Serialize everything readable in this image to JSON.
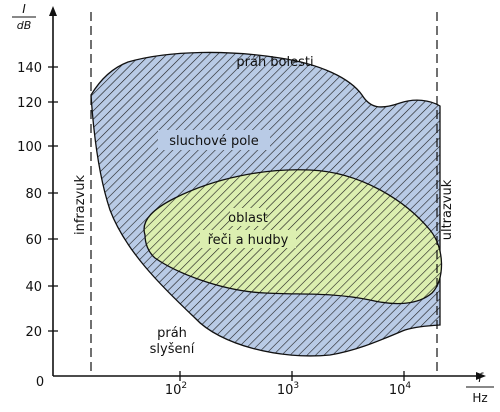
{
  "colors": {
    "auditory_field_fill": "#b9cbe6",
    "speech_music_fill": "#dcefb0",
    "hatch": "#1a1a1a",
    "axis": "#111111"
  },
  "axes": {
    "y_label_num": "I",
    "y_label_den": "dB",
    "x_label_num": "f",
    "x_label_den": "Hz",
    "origin": "0",
    "y_ticks": [
      "20",
      "40",
      "60",
      "80",
      "100",
      "120",
      "140"
    ],
    "x_ticks": [
      {
        "base": "10",
        "exp": "2"
      },
      {
        "base": "10",
        "exp": "3"
      },
      {
        "base": "10",
        "exp": "4"
      }
    ]
  },
  "labels": {
    "pain_threshold": "práh bolesti",
    "auditory_field": "sluchové pole",
    "speech_line1": "oblast",
    "speech_line2": "řeči a hudby",
    "hearing_line1": "práh",
    "hearing_line2": "slyšení",
    "infrasound": "infrazvuk",
    "ultrasound": "ultrazvuk"
  }
}
